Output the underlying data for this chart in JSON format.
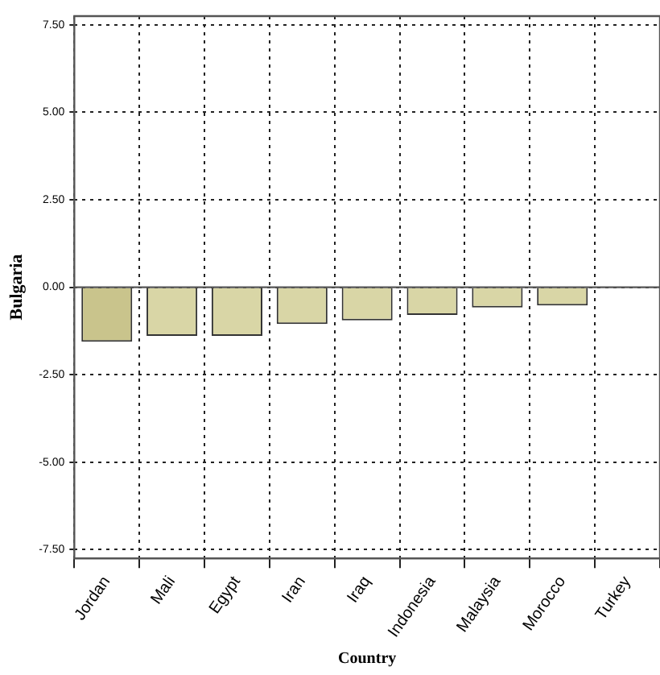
{
  "chart_data": {
    "type": "bar",
    "xlabel": "Country",
    "ylabel": "Bulgaria",
    "categories": [
      "Jordan",
      "Mali",
      "Egypt",
      "Iran",
      "Iraq",
      "Indonesia",
      "Malaysia",
      "Morocco",
      "Turkey"
    ],
    "values": [
      -1.56,
      -1.39,
      -1.39,
      -1.05,
      -0.95,
      -0.79,
      -0.58,
      -0.52,
      0
    ],
    "colors": [
      "#c9c48c",
      "#d9d6a6",
      "#d9d6a6",
      "#d9d6a6",
      "#d9d6a6",
      "#d9d6a6",
      "#d9d6a6",
      "#d9d6a6",
      "#d9d6a6"
    ],
    "ylim": [
      -7.75,
      7.75
    ],
    "yticks": [
      {
        "value": -7.5,
        "label": "-7.50"
      },
      {
        "value": -5,
        "label": "-5.00"
      },
      {
        "value": -2.5,
        "label": "-2.50"
      },
      {
        "value": 0,
        "label": "0.00"
      },
      {
        "value": 2.5,
        "label": "2.50"
      },
      {
        "value": 5,
        "label": "5.00"
      },
      {
        "value": 7.5,
        "label": "7.50"
      }
    ],
    "grid": true,
    "ref_lines": [
      {
        "axis": "y",
        "value": 0,
        "color": "#555555"
      }
    ]
  }
}
